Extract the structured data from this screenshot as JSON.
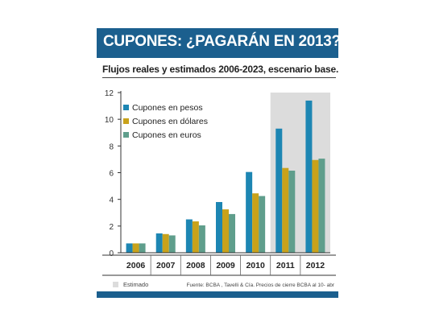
{
  "header": {
    "title": "CUPONES: ¿PAGARÁN EN 2013?"
  },
  "subtitle": "Flujos reales y estimados 2006-2023, escenario base.",
  "footer": {
    "estimated_label": "Estimado",
    "source": "Fuente: BCBA , Tavelli & Cía. Precios de cierre BCBA al 10- abr"
  },
  "colors": {
    "banner": "#1b5f8e",
    "pesos": "#1d86b3",
    "dolares": "#c9a21a",
    "euros": "#5f9e8c",
    "estimated_shade": "#dcdcdc"
  },
  "chart_data": {
    "type": "bar",
    "title": "CUPONES: ¿PAGARÁN EN 2013?",
    "subtitle": "Flujos reales y estimados 2006-2023, escenario base.",
    "categories": [
      "2006",
      "2007",
      "2008",
      "2009",
      "2010",
      "2011",
      "2012"
    ],
    "series": [
      {
        "name": "Cupones en pesos",
        "color": "#1d86b3",
        "values": [
          0.7,
          1.45,
          2.5,
          3.8,
          6.05,
          9.3,
          11.4
        ]
      },
      {
        "name": "Cupones en dólares",
        "color": "#c9a21a",
        "values": [
          0.7,
          1.4,
          2.35,
          3.25,
          4.45,
          6.35,
          6.95
        ]
      },
      {
        "name": "Cupones en euros",
        "color": "#5f9e8c",
        "values": [
          0.7,
          1.3,
          2.05,
          2.9,
          4.25,
          6.15,
          7.05
        ]
      }
    ],
    "y_ticks": [
      "0",
      "2",
      "4",
      "6",
      "8",
      "10",
      "12"
    ],
    "ylim": [
      0,
      12
    ],
    "estimated_categories": [
      "2011",
      "2012"
    ],
    "legend_position": "top-left",
    "grid": false
  }
}
